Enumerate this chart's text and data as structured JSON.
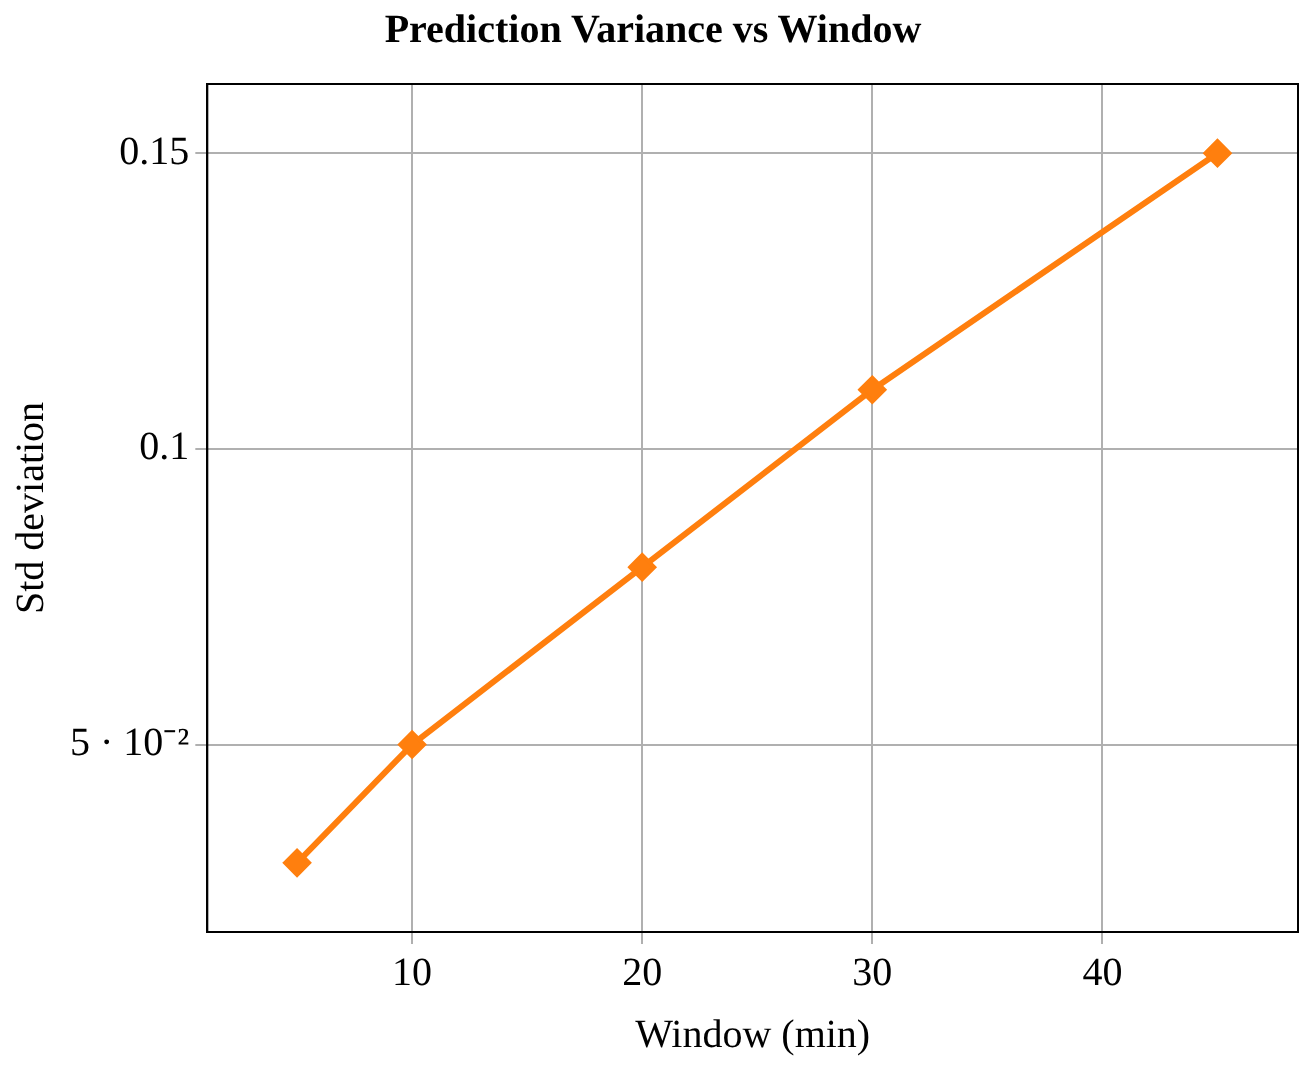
{
  "chart_data": {
    "type": "line",
    "title": "Prediction Variance vs Window",
    "xlabel": "Window (min)",
    "ylabel": "Std deviation",
    "x": [
      5,
      10,
      20,
      30,
      45
    ],
    "series": [
      {
        "color": "#ff7f0e",
        "values": [
          0.03,
          0.05,
          0.08,
          0.11,
          0.15
        ]
      }
    ],
    "xlim": [
      1.1,
      48.5
    ],
    "xticks": [
      10,
      20,
      30,
      40
    ],
    "ylim": [
      0.0183,
      0.1617
    ],
    "yticks": [
      {
        "value": 0.05,
        "label": "5 · 10⁻²"
      },
      0.1,
      0.15
    ],
    "grid": true,
    "legend": false,
    "marker": "diamond",
    "line_style": "solid"
  }
}
